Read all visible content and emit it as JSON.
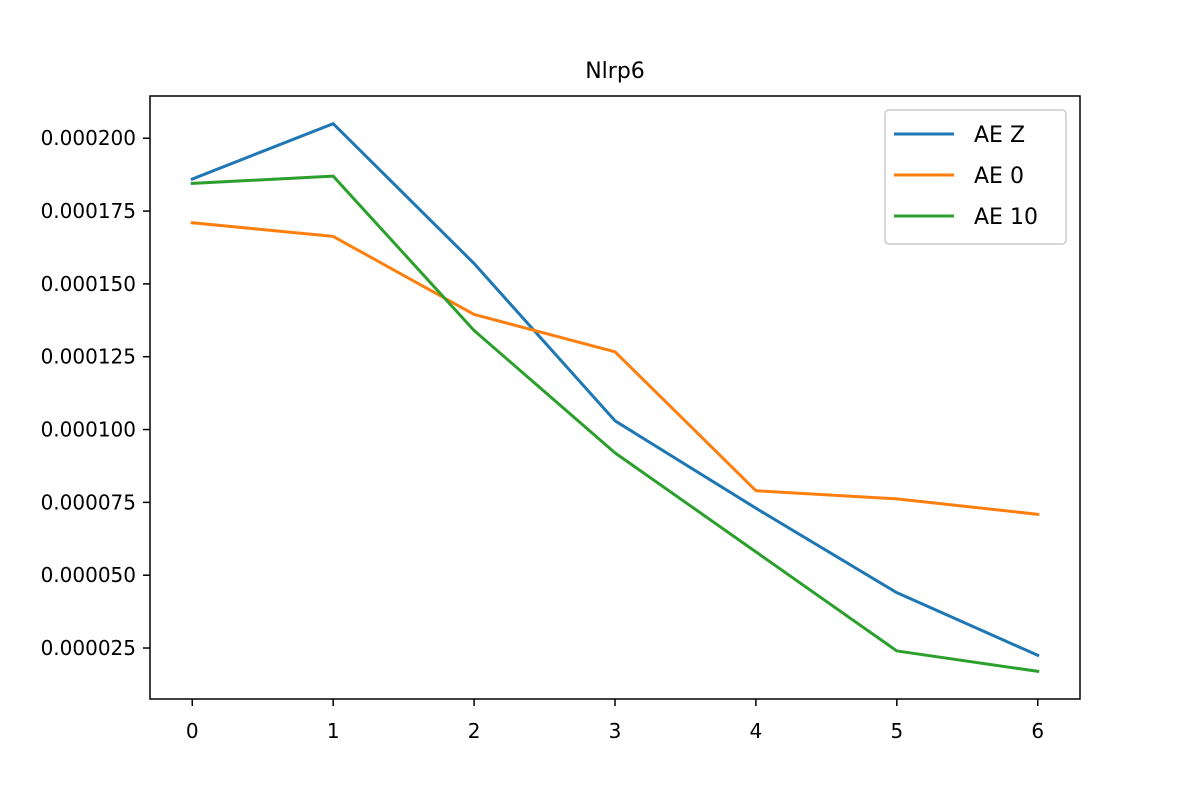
{
  "chart_data": {
    "type": "line",
    "title": "Nlrp6",
    "xlabel": "",
    "ylabel": "",
    "x": [
      0,
      1,
      2,
      3,
      4,
      5,
      6
    ],
    "x_ticks": [
      "0",
      "1",
      "2",
      "3",
      "4",
      "5",
      "6"
    ],
    "y_ticks": [
      2.5e-05,
      5e-05,
      7.5e-05,
      0.0001,
      0.000125,
      0.00015,
      0.000175,
      0.0002
    ],
    "y_tick_labels": [
      "0.000025",
      "0.000050",
      "0.000075",
      "0.000100",
      "0.000125",
      "0.000150",
      "0.000175",
      "0.000200"
    ],
    "xlim": [
      -0.3,
      6.3
    ],
    "ylim": [
      7.5e-06,
      0.0002145
    ],
    "grid": false,
    "legend_position": "top-right",
    "series": [
      {
        "name": "AE Z",
        "color": "#1f77b4",
        "values": [
          0.000186,
          0.000205,
          0.000157,
          0.000103,
          7.3e-05,
          4.4e-05,
          2.25e-05
        ]
      },
      {
        "name": "AE 0",
        "color": "#ff7f0e",
        "values": [
          0.000171,
          0.0001663,
          0.0001395,
          0.0001267,
          7.9e-05,
          7.62e-05,
          7.09e-05
        ]
      },
      {
        "name": "AE 10",
        "color": "#2ca02c",
        "values": [
          0.0001845,
          0.000187,
          0.000134,
          9.2e-05,
          5.8e-05,
          2.4e-05,
          1.7e-05
        ]
      }
    ]
  }
}
